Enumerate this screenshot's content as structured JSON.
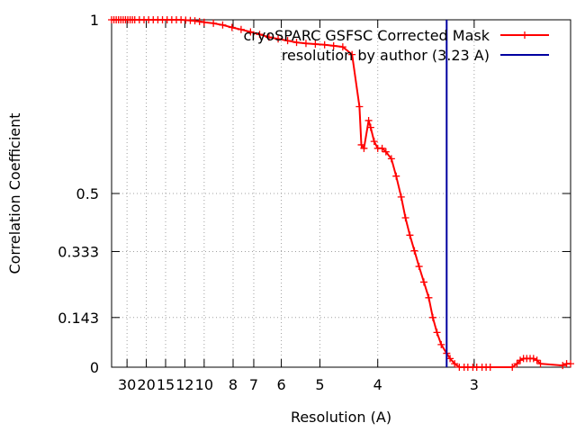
{
  "chart_data": {
    "type": "line",
    "title": "",
    "xlabel": "Resolution (A)",
    "ylabel": "Correlation Coefficient",
    "x_scale": "reciprocal",
    "xlim": [
      50,
      2.4
    ],
    "ylim": [
      0,
      1
    ],
    "grid": true,
    "legend_position": "top-right",
    "x_ticks": [
      "30",
      "20",
      "15",
      "12",
      "10",
      "8",
      "7",
      "6",
      "5",
      "4",
      "3"
    ],
    "y_ticks": [
      "0",
      "0.143",
      "0.333",
      "0.5",
      "1"
    ],
    "series": [
      {
        "name": "cryoSPARC GSFSC Corrected Mask",
        "color": "#ff0000",
        "marker": "plus",
        "x": [
          50.0,
          45.45,
          41.67,
          38.46,
          35.71,
          33.33,
          31.25,
          29.41,
          27.78,
          26.32,
          25.0,
          22.73,
          20.83,
          19.23,
          17.86,
          16.67,
          15.63,
          14.71,
          13.89,
          13.16,
          12.5,
          11.9,
          11.36,
          10.87,
          10.42,
          10.0,
          9.26,
          8.62,
          8.06,
          7.58,
          7.14,
          6.76,
          6.41,
          6.1,
          5.81,
          5.56,
          5.32,
          5.1,
          4.9,
          4.72,
          4.55,
          4.39,
          4.27,
          4.24,
          4.2,
          4.13,
          4.1,
          4.05,
          4.0,
          3.94,
          3.89,
          3.82,
          3.76,
          3.7,
          3.65,
          3.6,
          3.55,
          3.5,
          3.45,
          3.4,
          3.36,
          3.32,
          3.28,
          3.23,
          3.2,
          3.16,
          3.12,
          3.08,
          3.05,
          3.01,
          2.98,
          2.94,
          2.91,
          2.88,
          2.73,
          2.7,
          2.68,
          2.66,
          2.64,
          2.62,
          2.6,
          2.58,
          2.56,
          2.44,
          2.42,
          2.4
        ],
        "y": [
          1.0,
          1.0,
          1.0,
          1.0,
          1.0,
          1.0,
          1.0,
          1.0,
          1.0,
          1.0,
          1.0,
          1.0,
          1.0,
          1.0,
          1.0,
          1.0,
          1.0,
          1.0,
          1.0,
          1.0,
          1.0,
          0.999,
          0.998,
          0.997,
          0.995,
          0.993,
          0.99,
          0.985,
          0.978,
          0.972,
          0.965,
          0.958,
          0.95,
          0.945,
          0.94,
          0.935,
          0.932,
          0.93,
          0.928,
          0.925,
          0.922,
          0.9,
          0.75,
          0.64,
          0.63,
          0.71,
          0.69,
          0.65,
          0.63,
          0.63,
          0.62,
          0.6,
          0.55,
          0.49,
          0.43,
          0.38,
          0.335,
          0.29,
          0.245,
          0.2,
          0.143,
          0.1,
          0.065,
          0.04,
          0.025,
          0.01,
          0.0,
          0.0,
          0.0,
          0.0,
          0.0,
          0.0,
          0.0,
          0.0,
          0.0,
          0.01,
          0.02,
          0.025,
          0.025,
          0.025,
          0.025,
          0.02,
          0.01,
          0.005,
          0.01,
          0.01
        ]
      },
      {
        "name": "resolution by author (3.23 A)",
        "color": "#0000a0",
        "marker": "none",
        "x": [
          3.23,
          3.23
        ],
        "y": [
          0,
          1
        ]
      }
    ]
  }
}
